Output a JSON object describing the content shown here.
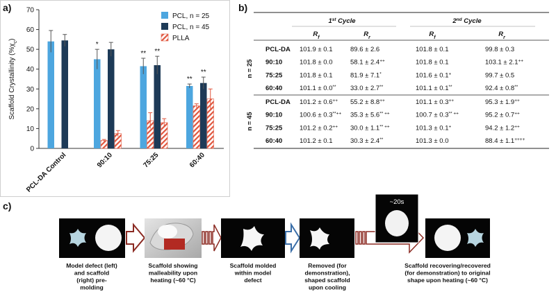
{
  "panel_labels": {
    "a": "a)",
    "b": "b)",
    "c": "c)"
  },
  "chart_data": {
    "type": "bar",
    "ylabel": {
      "text": "Scaffold Crystallinity (%χ",
      "sub": "c",
      "close": ")"
    },
    "categories": [
      "PCL-DA Control",
      "90:10",
      "75:25",
      "60:40"
    ],
    "series": [
      {
        "name": "PCL, n = 25",
        "color": "#4da6df",
        "values": [
          54,
          45,
          41.5,
          31.5
        ],
        "errors": [
          5.5,
          5,
          4,
          1
        ],
        "sig": [
          null,
          "*",
          "**",
          "**"
        ]
      },
      {
        "name": "PCL, n = 45",
        "color": "#1d3a57",
        "values": [
          54.5,
          50,
          42,
          33
        ],
        "errors": [
          3,
          3.5,
          4.5,
          3
        ],
        "sig": [
          null,
          null,
          "**",
          "**"
        ]
      },
      {
        "name": "PLLA",
        "color": "#e0553d",
        "hatch": true,
        "values": [
          [
            null,
            null
          ],
          [
            4,
            7.5
          ],
          [
            14,
            13
          ],
          [
            21.5,
            25
          ]
        ],
        "errors": [
          [
            null,
            null
          ],
          [
            0.5,
            1.5
          ],
          [
            4,
            2
          ],
          [
            1,
            5
          ]
        ]
      }
    ],
    "ylim": [
      0,
      70
    ],
    "yticks": [
      0,
      10,
      20,
      30,
      40,
      50,
      60,
      70
    ],
    "legend": "upper right"
  },
  "table": {
    "cycles": [
      {
        "num": "1",
        "sup": "st",
        "rest": " Cycle"
      },
      {
        "num": "2",
        "sup": "nd",
        "rest": " Cycle"
      }
    ],
    "columns": [
      {
        "main": "R",
        "sub": "f"
      },
      {
        "main": "R",
        "sub": "r"
      },
      {
        "main": "R",
        "sub": "f"
      },
      {
        "main": "R",
        "sub": "r"
      }
    ],
    "groups": [
      {
        "label": "n = 25",
        "rows": [
          {
            "label": "PCL-DA",
            "cells": [
              {
                "text": "101.9 ± 0.1"
              },
              {
                "text": "89.6 ± 2.6"
              },
              {
                "text": "101.8 ± 0.1"
              },
              {
                "text": "99.8 ± 0.3"
              }
            ]
          },
          {
            "label": "90:10",
            "cells": [
              {
                "text": "101.8 ± 0.0"
              },
              {
                "text": "58.1 ± 2.4",
                "sup": "++"
              },
              {
                "text": "101.8 ± 0.1"
              },
              {
                "text": "103.1 ± 2.1",
                "sup": "++"
              }
            ]
          },
          {
            "label": "75:25",
            "cells": [
              {
                "text": "101.8 ± 0.1"
              },
              {
                "text": "81.9 ± 7.1",
                "sup": "*"
              },
              {
                "text": "101.6 ± 0.1",
                "sup": "+"
              },
              {
                "text": "99.7 ± 0.5"
              }
            ]
          },
          {
            "label": "60:40",
            "cells": [
              {
                "text": "101.1 ± 0.0",
                "sup": "**"
              },
              {
                "text": "33.0 ± 2.7",
                "sup": "**"
              },
              {
                "text": "101.1 ± 0.1",
                "sup": "**"
              },
              {
                "text": "92.4 ± 0.8",
                "sup": "**"
              }
            ]
          }
        ]
      },
      {
        "label": "n = 45",
        "rows": [
          {
            "label": "PCL-DA",
            "cells": [
              {
                "text": "101.2 ± 0.6",
                "sup": "++"
              },
              {
                "text": "55.2 ± 8.8",
                "sup": "++"
              },
              {
                "text": "101.1 ± 0.3",
                "sup": "++"
              },
              {
                "text": "95.3 ± 1.9",
                "sup": "++"
              }
            ]
          },
          {
            "label": "90:10",
            "cells": [
              {
                "text": "100.6 ± 0.3",
                "sup": "**++"
              },
              {
                "text": "35.3 ± 5.6",
                "sup": "** ++"
              },
              {
                "text": "100.7 ± 0.3",
                "sup": "** ++"
              },
              {
                "text": "95.2 ± 0.7",
                "sup": "++"
              }
            ]
          },
          {
            "label": "75:25",
            "cells": [
              {
                "text": "101.2 ± 0.2",
                "sup": "++"
              },
              {
                "text": "30.0 ± 1.1",
                "sup": "** ++"
              },
              {
                "text": "101.3 ± 0.1",
                "sup": "+"
              },
              {
                "text": "94.2 ± 1.2",
                "sup": "++"
              }
            ]
          },
          {
            "label": "60:40",
            "cells": [
              {
                "text": "101.2 ± 0.1"
              },
              {
                "text": "30.3 ± 2.4",
                "sup": "**"
              },
              {
                "text": "101.3 ± 0.0"
              },
              {
                "text": "88.4 ± 1.1",
                "sup": "++++"
              }
            ]
          }
        ]
      }
    ]
  },
  "photos": {
    "inset_label": "~20s",
    "steps": [
      {
        "caption": [
          "Model defect (left)",
          "and scaffold",
          "(right) pre-",
          "molding"
        ]
      },
      {
        "caption": [
          "Scaffold showing",
          "malleability upon",
          "heating (~60 °C)"
        ]
      },
      {
        "caption": [
          "Scaffold molded",
          "within model",
          "defect"
        ]
      },
      {
        "caption": [
          "Removed (for",
          "demonstration),",
          "shaped scaffold",
          "upon cooling"
        ]
      },
      {
        "caption": [
          "Scaffold recovering/recovered",
          "(for demonstration) to original",
          "shape upon heating (~60 °C)"
        ]
      }
    ]
  }
}
